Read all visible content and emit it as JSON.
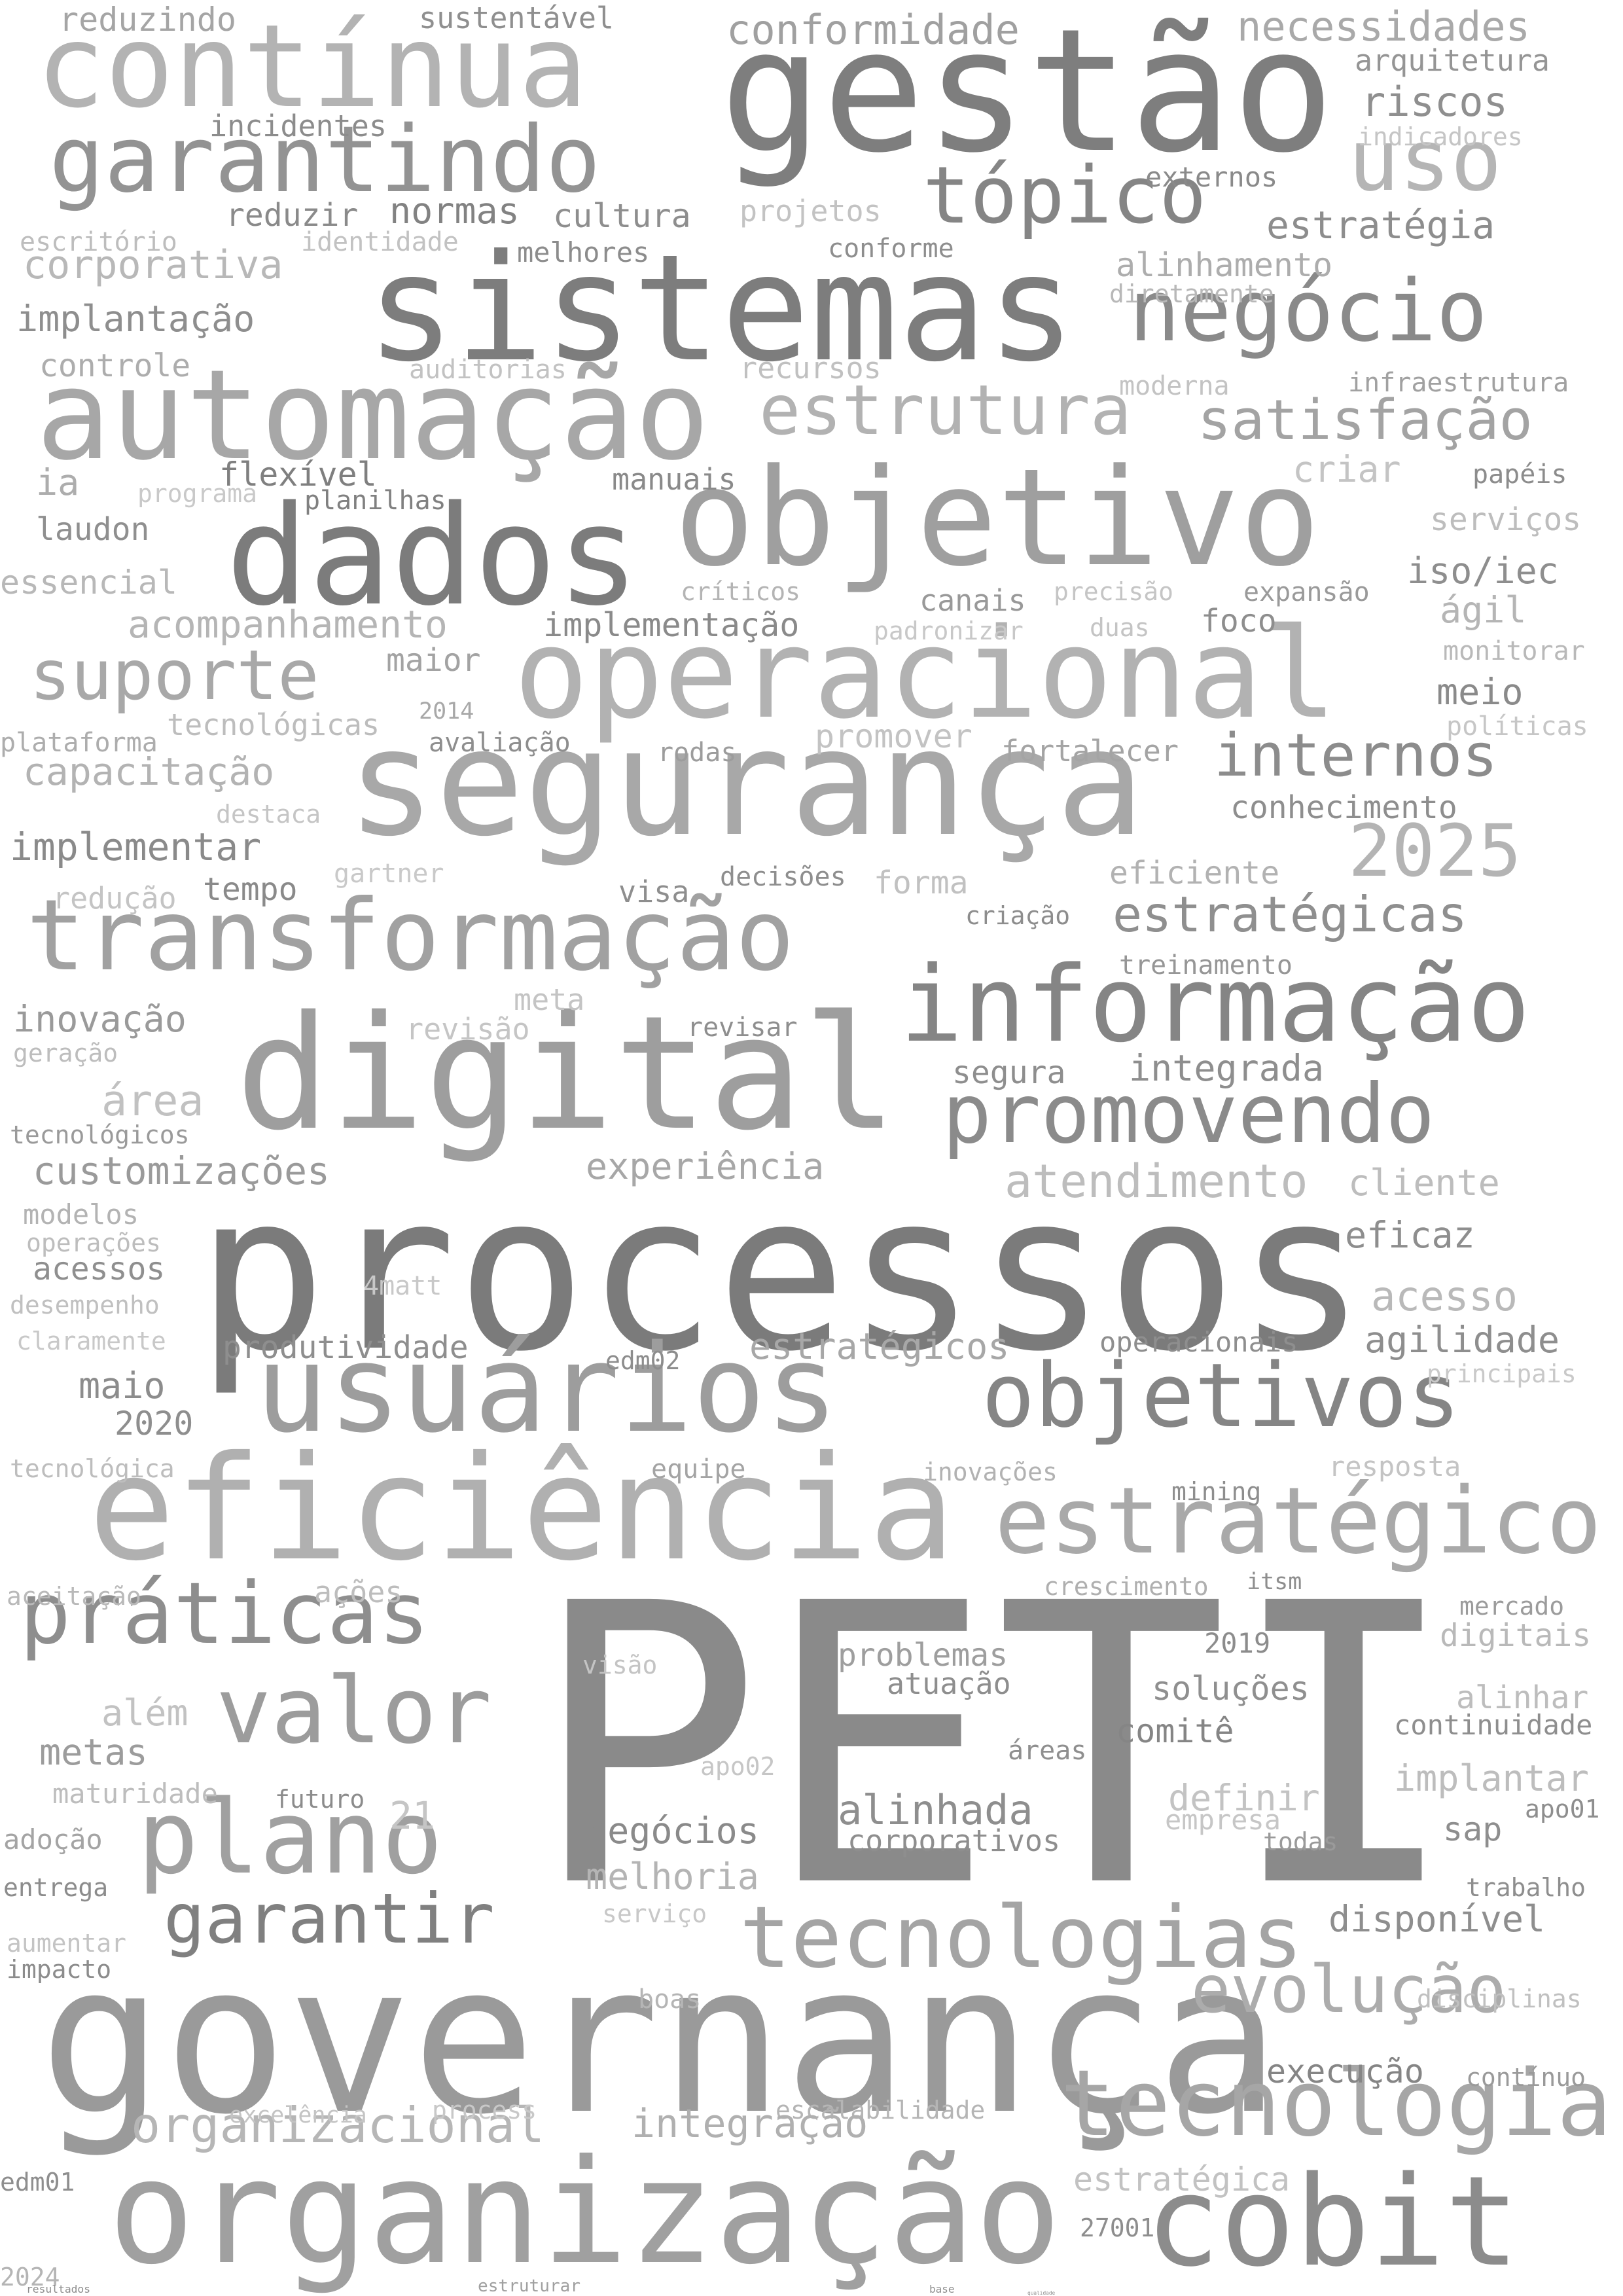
{
  "words": [
    {
      "text": "PETI",
      "shade": "#8a8a8a"
    },
    {
      "text": "processos",
      "shade": "#7b7b7b"
    },
    {
      "text": "governança",
      "shade": "#9a9a9a"
    },
    {
      "text": "gestão",
      "shade": "#7e7e7e"
    },
    {
      "text": "sistemas",
      "shade": "#7d7d7d"
    },
    {
      "text": "digital",
      "shade": "#9e9e9e"
    },
    {
      "text": "segurança",
      "shade": "#a8a8a8"
    },
    {
      "text": "eficiência",
      "shade": "#b0b0b0"
    },
    {
      "text": "organização",
      "shade": "#a0a0a0"
    },
    {
      "text": "usuários",
      "shade": "#9d9d9d"
    },
    {
      "text": "operacional",
      "shade": "#b2b2b2"
    },
    {
      "text": "automação",
      "shade": "#a7a7a7"
    },
    {
      "text": "objetivo",
      "shade": "#9f9f9f"
    },
    {
      "text": "dados",
      "shade": "#7c7c7c"
    },
    {
      "text": "contínua",
      "shade": "#b3b3b3"
    },
    {
      "text": "informação",
      "shade": "#858585"
    },
    {
      "text": "transformação",
      "shade": "#a1a1a1"
    },
    {
      "text": "cobit",
      "shade": "#8c8c8c"
    },
    {
      "text": "tecnologia",
      "shade": "#a6a6a6"
    },
    {
      "text": "tecnologias",
      "shade": "#a4a4a4"
    },
    {
      "text": "estratégico",
      "shade": "#a9a9a9"
    },
    {
      "text": "objetivos",
      "shade": "#858585"
    },
    {
      "text": "plano",
      "shade": "#a0a0a0"
    },
    {
      "text": "valor",
      "shade": "#9c9c9c"
    },
    {
      "text": "práticas",
      "shade": "#8e8e8e"
    },
    {
      "text": "garantindo",
      "shade": "#939393"
    },
    {
      "text": "promovendo",
      "shade": "#8b8b8b"
    },
    {
      "text": "negócio",
      "shade": "#8a8a8a"
    },
    {
      "text": "estrutura",
      "shade": "#b2b2b2"
    },
    {
      "text": "garantir",
      "shade": "#808080"
    },
    {
      "text": "suporte",
      "shade": "#a8a8a8"
    },
    {
      "text": "tópico",
      "shade": "#858585"
    },
    {
      "text": "uso",
      "shade": "#b5b5b5"
    },
    {
      "text": "internos",
      "shade": "#8c8c8c"
    },
    {
      "text": "evolução",
      "shade": "#acacac"
    },
    {
      "text": "satisfação",
      "shade": "#a3a3a3"
    },
    {
      "text": "2025",
      "shade": "#b4b4b4"
    },
    {
      "text": "estratégicas",
      "shade": "#8f8f8f"
    },
    {
      "text": "organizacional",
      "shade": "#b6b6b6"
    },
    {
      "text": "atendimento",
      "shade": "#bdbdbd"
    },
    {
      "text": "necessidades",
      "shade": "#a9a9a9"
    },
    {
      "text": "conformidade",
      "shade": "#a0a0a0"
    },
    {
      "text": "riscos",
      "shade": "#8f8f8f"
    },
    {
      "text": "arquitetura",
      "shade": "#959595"
    },
    {
      "text": "estratégia",
      "shade": "#8d8d8d"
    },
    {
      "text": "cultura",
      "shade": "#8e8e8e"
    },
    {
      "text": "implantação",
      "shade": "#8e8e8e"
    },
    {
      "text": "corporativa",
      "shade": "#b8b8b8"
    },
    {
      "text": "alinhamento",
      "shade": "#adadad"
    },
    {
      "text": "normas",
      "shade": "#828282"
    },
    {
      "text": "reduzir",
      "shade": "#8a8a8a"
    },
    {
      "text": "incidentes",
      "shade": "#8c8c8c"
    },
    {
      "text": "reduzindo",
      "shade": "#a5a5a5"
    },
    {
      "text": "sustentável",
      "shade": "#8f8f8f"
    },
    {
      "text": "indicadores",
      "shade": "#c5c5c5"
    },
    {
      "text": "externos",
      "shade": "#8a8a8a"
    },
    {
      "text": "projetos",
      "shade": "#c3c3c3"
    },
    {
      "text": "conforme",
      "shade": "#8e8e8e"
    },
    {
      "text": "melhores",
      "shade": "#8c8c8c"
    },
    {
      "text": "escritório",
      "shade": "#bdbdbd"
    },
    {
      "text": "identidade",
      "shade": "#c2c2c2"
    },
    {
      "text": "diretamente",
      "shade": "#b8b8b8"
    },
    {
      "text": "controle",
      "shade": "#adadad"
    },
    {
      "text": "auditorias",
      "shade": "#c2c2c2"
    },
    {
      "text": "recursos",
      "shade": "#c0c0c0"
    },
    {
      "text": "moderna",
      "shade": "#c3c3c3"
    },
    {
      "text": "infraestrutura",
      "shade": "#a1a1a1"
    },
    {
      "text": "ia",
      "shade": "#adadad"
    },
    {
      "text": "programa",
      "shade": "#c9c9c9"
    },
    {
      "text": "flexível",
      "shade": "#7f7f7f"
    },
    {
      "text": "planilhas",
      "shade": "#808080"
    },
    {
      "text": "manuais",
      "shade": "#8a8a8a"
    },
    {
      "text": "criar",
      "shade": "#c4c4c4"
    },
    {
      "text": "papéis",
      "shade": "#8c8c8c"
    },
    {
      "text": "laudon",
      "shade": "#8f8f8f"
    },
    {
      "text": "serviços",
      "shade": "#bdbdbd"
    },
    {
      "text": "essencial",
      "shade": "#b8b8b8"
    },
    {
      "text": "críticos",
      "shade": "#b4b4b4"
    },
    {
      "text": "canais",
      "shade": "#999999"
    },
    {
      "text": "precisão",
      "shade": "#c5c5c5"
    },
    {
      "text": "expansão",
      "shade": "#9a9a9a"
    },
    {
      "text": "iso/iec",
      "shade": "#8e8e8e"
    },
    {
      "text": "ágil",
      "shade": "#b5b5b5"
    },
    {
      "text": "acompanhamento",
      "shade": "#b5b5b5"
    },
    {
      "text": "implementação",
      "shade": "#8a8a8a"
    },
    {
      "text": "padronizar",
      "shade": "#c8c8c8"
    },
    {
      "text": "duas",
      "shade": "#c4c4c4"
    },
    {
      "text": "foco",
      "shade": "#8e8e8e"
    },
    {
      "text": "monitorar",
      "shade": "#b9b9b9"
    },
    {
      "text": "maior",
      "shade": "#a3a3a3"
    },
    {
      "text": "meio",
      "shade": "#8a8a8a"
    },
    {
      "text": "tecnológicas",
      "shade": "#bdbdbd"
    },
    {
      "text": "2014",
      "shade": "#a8a8a8"
    },
    {
      "text": "políticas",
      "shade": "#c6c6c6"
    },
    {
      "text": "plataforma",
      "shade": "#adadad"
    },
    {
      "text": "avaliação",
      "shade": "#8e8e8e"
    },
    {
      "text": "rodas",
      "shade": "#9c9c9c"
    },
    {
      "text": "promover",
      "shade": "#c3c3c3"
    },
    {
      "text": "fortalecer",
      "shade": "#a4a4a4"
    },
    {
      "text": "capacitação",
      "shade": "#b3b3b3"
    },
    {
      "text": "conhecimento",
      "shade": "#8e8e8e"
    },
    {
      "text": "destaca",
      "shade": "#c5c5c5"
    },
    {
      "text": "implementar",
      "shade": "#8a8a8a"
    },
    {
      "text": "gartner",
      "shade": "#c9c9c9"
    },
    {
      "text": "decisões",
      "shade": "#8e8e8e"
    },
    {
      "text": "forma",
      "shade": "#c1c1c1"
    },
    {
      "text": "eficiente",
      "shade": "#b2b2b2"
    },
    {
      "text": "redução",
      "shade": "#c4c4c4"
    },
    {
      "text": "tempo",
      "shade": "#8a8a8a"
    },
    {
      "text": "visa",
      "shade": "#8e8e8e"
    },
    {
      "text": "criação",
      "shade": "#8d8d8d"
    },
    {
      "text": "treinamento",
      "shade": "#969696"
    },
    {
      "text": "inovação",
      "shade": "#9a9a9a"
    },
    {
      "text": "meta",
      "shade": "#c4c4c4"
    },
    {
      "text": "revisão",
      "shade": "#c5c5c5"
    },
    {
      "text": "revisar",
      "shade": "#8e8e8e"
    },
    {
      "text": "geração",
      "shade": "#bdbdbd"
    },
    {
      "text": "segura",
      "shade": "#8e8e8e"
    },
    {
      "text": "integrada",
      "shade": "#8e8e8e"
    },
    {
      "text": "área",
      "shade": "#c1c1c1"
    },
    {
      "text": "tecnológicos",
      "shade": "#9a9a9a"
    },
    {
      "text": "customizações",
      "shade": "#9a9a9a"
    },
    {
      "text": "experiência",
      "shade": "#a7a7a7"
    },
    {
      "text": "cliente",
      "shade": "#bdbdbd"
    },
    {
      "text": "modelos",
      "shade": "#b3b3b3"
    },
    {
      "text": "operações",
      "shade": "#bdbdbd"
    },
    {
      "text": "acessos",
      "shade": "#8f8f8f"
    },
    {
      "text": "eficaz",
      "shade": "#8e8e8e"
    },
    {
      "text": "4matt",
      "shade": "#c8c8c8"
    },
    {
      "text": "desempenho",
      "shade": "#c0c0c0"
    },
    {
      "text": "acesso",
      "shade": "#b9b9b9"
    },
    {
      "text": "claramente",
      "shade": "#c8c8c8"
    },
    {
      "text": "produtividade",
      "shade": "#8e8e8e"
    },
    {
      "text": "edm02",
      "shade": "#8d8d8d"
    },
    {
      "text": "estratégicos",
      "shade": "#a7a7a7"
    },
    {
      "text": "operacionais",
      "shade": "#8e8e8e"
    },
    {
      "text": "agilidade",
      "shade": "#8e8e8e"
    },
    {
      "text": "maio",
      "shade": "#8c8c8c"
    },
    {
      "text": "principais",
      "shade": "#c9c9c9"
    },
    {
      "text": "2020",
      "shade": "#8e8e8e"
    },
    {
      "text": "tecnológica",
      "shade": "#bdbdbd"
    },
    {
      "text": "equipe",
      "shade": "#a4a4a4"
    },
    {
      "text": "inovações",
      "shade": "#b2b2b2"
    },
    {
      "text": "resposta",
      "shade": "#c4c4c4"
    },
    {
      "text": "mining",
      "shade": "#8e8e8e"
    },
    {
      "text": "aceitação",
      "shade": "#b9b9b9"
    },
    {
      "text": "ações",
      "shade": "#bdbdbd"
    },
    {
      "text": "crescimento",
      "shade": "#afafaf"
    },
    {
      "text": "itsm",
      "shade": "#8e8e8e"
    },
    {
      "text": "mercado",
      "shade": "#9c9c9c"
    },
    {
      "text": "digitais",
      "shade": "#b9b9b9"
    },
    {
      "text": "visão",
      "shade": "#c4c4c4"
    },
    {
      "text": "problemas",
      "shade": "#9e9e9e"
    },
    {
      "text": "2019",
      "shade": "#8c8c8c"
    },
    {
      "text": "atuação",
      "shade": "#8e8e8e"
    },
    {
      "text": "soluções",
      "shade": "#8f8f8f"
    },
    {
      "text": "alinhar",
      "shade": "#bdbdbd"
    },
    {
      "text": "além",
      "shade": "#c2c2c2"
    },
    {
      "text": "continuidade",
      "shade": "#8e8e8e"
    },
    {
      "text": "comitê",
      "shade": "#858585"
    },
    {
      "text": "metas",
      "shade": "#9c9c9c"
    },
    {
      "text": "áreas",
      "shade": "#8f8f8f"
    },
    {
      "text": "apo02",
      "shade": "#c6c6c6"
    },
    {
      "text": "implantar",
      "shade": "#bdbdbd"
    },
    {
      "text": "maturidade",
      "shade": "#bdbdbd"
    },
    {
      "text": "futuro",
      "shade": "#8c8c8c"
    },
    {
      "text": "definir",
      "shade": "#c3c3c3"
    },
    {
      "text": "21",
      "shade": "#c5c5c5"
    },
    {
      "text": "alinhada",
      "shade": "#8e8e8e"
    },
    {
      "text": "negócios",
      "shade": "#8a8a8a"
    },
    {
      "text": "empresa",
      "shade": "#c6c6c6"
    },
    {
      "text": "apo01",
      "shade": "#8e8e8e"
    },
    {
      "text": "adoção",
      "shade": "#a4a4a4"
    },
    {
      "text": "corporativos",
      "shade": "#8e8e8e"
    },
    {
      "text": "todas",
      "shade": "#9a9a9a"
    },
    {
      "text": "sap",
      "shade": "#8e8e8e"
    },
    {
      "text": "melhoria",
      "shade": "#b4b4b4"
    },
    {
      "text": "entrega",
      "shade": "#8c8c8c"
    },
    {
      "text": "trabalho",
      "shade": "#8e8e8e"
    },
    {
      "text": "serviço",
      "shade": "#c8c8c8"
    },
    {
      "text": "disponível",
      "shade": "#8e8e8e"
    },
    {
      "text": "aumentar",
      "shade": "#c4c4c4"
    },
    {
      "text": "impacto",
      "shade": "#8c8c8c"
    },
    {
      "text": "boas",
      "shade": "#b5b5b5"
    },
    {
      "text": "disciplinas",
      "shade": "#c0c0c0"
    },
    {
      "text": "execução",
      "shade": "#858585"
    },
    {
      "text": "excelência",
      "shade": "#c4c4c4"
    },
    {
      "text": "process",
      "shade": "#c8c8c8"
    },
    {
      "text": "contínuo",
      "shade": "#9a9a9a"
    },
    {
      "text": "escalabilidade",
      "shade": "#b5b5b5"
    },
    {
      "text": "integração",
      "shade": "#b0b0b0"
    },
    {
      "text": "edm01",
      "shade": "#8e8e8e"
    },
    {
      "text": "estratégica",
      "shade": "#c2c2c2"
    },
    {
      "text": "27001",
      "shade": "#8e8e8e"
    },
    {
      "text": "2024",
      "shade": "#b5b5b5"
    },
    {
      "text": "resultados",
      "shade": "#8c8c8c"
    },
    {
      "text": "estruturar",
      "shade": "#a0a0a0"
    },
    {
      "text": "base",
      "shade": "#8e8e8e"
    },
    {
      "text": "qualidade",
      "shade": "#8e8e8e"
    }
  ]
}
